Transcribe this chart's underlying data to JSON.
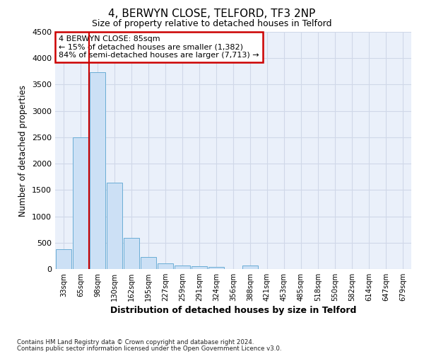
{
  "title": "4, BERWYN CLOSE, TELFORD, TF3 2NP",
  "subtitle": "Size of property relative to detached houses in Telford",
  "xlabel": "Distribution of detached houses by size in Telford",
  "ylabel": "Number of detached properties",
  "categories": [
    "33sqm",
    "65sqm",
    "98sqm",
    "130sqm",
    "162sqm",
    "195sqm",
    "227sqm",
    "259sqm",
    "291sqm",
    "324sqm",
    "356sqm",
    "388sqm",
    "421sqm",
    "453sqm",
    "485sqm",
    "518sqm",
    "550sqm",
    "582sqm",
    "614sqm",
    "647sqm",
    "679sqm"
  ],
  "values": [
    370,
    2500,
    3730,
    1640,
    590,
    225,
    110,
    65,
    50,
    40,
    0,
    70,
    0,
    0,
    0,
    0,
    0,
    0,
    0,
    0,
    0
  ],
  "bar_color": "#cce0f5",
  "bar_edge_color": "#6aadd5",
  "red_line_x": 1.5,
  "annotation_title": "4 BERWYN CLOSE: 85sqm",
  "annotation_line1": "← 15% of detached houses are smaller (1,382)",
  "annotation_line2": "84% of semi-detached houses are larger (7,713) →",
  "annotation_box_color": "#ffffff",
  "annotation_box_edge": "#cc0000",
  "ymax": 4500,
  "yticks": [
    0,
    500,
    1000,
    1500,
    2000,
    2500,
    3000,
    3500,
    4000,
    4500
  ],
  "grid_color": "#d0d8e8",
  "background_color": "#eaf0fa",
  "footer_line1": "Contains HM Land Registry data © Crown copyright and database right 2024.",
  "footer_line2": "Contains public sector information licensed under the Open Government Licence v3.0."
}
